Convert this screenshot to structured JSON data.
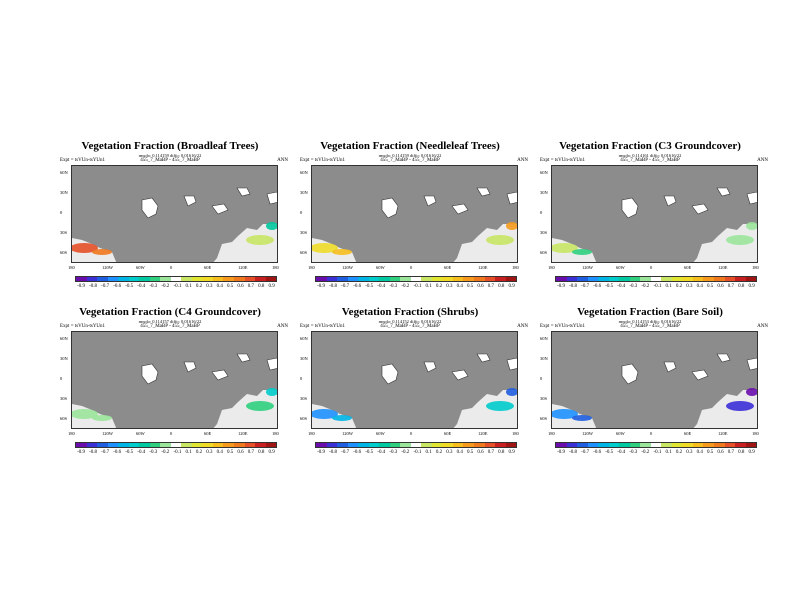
{
  "panels": [
    {
      "title": "Vegetation Fraction (Broadleaf Trees)",
      "stats": "rmsdo: 0.114159 diffo: 0.01616/22",
      "expt": "Expt = tsVUn-tsYUn1",
      "diff": "455_7_MaBP - 455_7_MaBP",
      "season": "ANN"
    },
    {
      "title": "Vegetation Fraction (Needleleaf Trees)",
      "stats": "rmsdo: 0.114159 diffo: 0.01616/22",
      "expt": "Expt = tsVUn-tsYUn1",
      "diff": "455_7_MaBP - 455_7_MaBP",
      "season": "ANN"
    },
    {
      "title": "Vegetation Fraction (C3 Groundcover)",
      "stats": "rmsdo: 0.114161 diffo: 0.01616/22",
      "expt": "Expt = tsVUn-tsYUn1",
      "diff": "455_7_MaBP - 455_7_MaBP",
      "season": "ANN"
    },
    {
      "title": "Vegetation Fraction (C4 Groundcover)",
      "stats": "rmsdo: 0.114157 diffo: 0.01616/22",
      "expt": "Expt = tsVUn-tsYUn1",
      "diff": "455_7_MaBP - 455_7_MaBP",
      "season": "ANN"
    },
    {
      "title": "Vegetation Fraction (Shrubs)",
      "stats": "rmsdo: 0.114152 diffo: 0.01616/22",
      "expt": "Expt = tsVUn-tsYUn1",
      "diff": "455_7_MaBP - 455_7_MaBP",
      "season": "ANN"
    },
    {
      "title": "Vegetation Fraction (Bare Soil)",
      "stats": "rmsdo: 0.114153 diffo: 0.01616/22",
      "expt": "Expt = tsVUn-tsYUn1",
      "diff": "455_7_MaBP - 455_7_MaBP",
      "season": "ANN"
    }
  ],
  "axes": {
    "lat_labels": [
      "60N",
      "30N",
      "0",
      "30S",
      "60S"
    ],
    "lon_labels": [
      "180",
      "120W",
      "60W",
      "0",
      "60E",
      "120E",
      "180"
    ]
  },
  "colorbar": {
    "labels": [
      "-0.9",
      "-0.8",
      "-0.7",
      "-0.6",
      "-0.5",
      "-0.4",
      "-0.3",
      "-0.2",
      "-0.1",
      "0.1",
      "0.2",
      "0.3",
      "0.4",
      "0.5",
      "0.6",
      "0.7",
      "0.8",
      "0.9"
    ],
    "colors": [
      "#6a0dad",
      "#3b2fd6",
      "#1f5ee0",
      "#1e90ff",
      "#00b4e6",
      "#00cccc",
      "#00c8a0",
      "#30d080",
      "#9be59b",
      "#ffffff",
      "#c8e664",
      "#e0e632",
      "#f0dc28",
      "#f5be1e",
      "#f59a1e",
      "#f0781e",
      "#e65028",
      "#c82020",
      "#a01414"
    ]
  }
}
